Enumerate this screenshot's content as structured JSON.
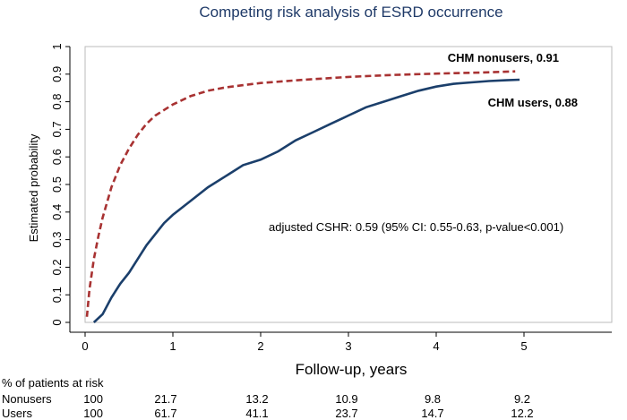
{
  "chart_data": {
    "type": "line",
    "title": "Competing risk analysis of ESRD occurrence",
    "xlabel": "Follow-up, years",
    "ylabel": "Estimated probability",
    "xlim": [
      0,
      6
    ],
    "ylim": [
      0,
      1
    ],
    "xticks": [
      0,
      1,
      2,
      3,
      4,
      5
    ],
    "yticks": [
      0,
      0.1,
      0.2,
      0.3,
      0.4,
      0.5,
      0.6,
      0.7,
      0.8,
      0.9,
      1
    ],
    "series": [
      {
        "name": "CHM nonusers",
        "label": "CHM nonusers, 0.91",
        "color": "#a83232",
        "dash": true,
        "x": [
          0.02,
          0.05,
          0.1,
          0.15,
          0.2,
          0.3,
          0.4,
          0.5,
          0.6,
          0.7,
          0.8,
          0.9,
          1.0,
          1.2,
          1.4,
          1.6,
          1.8,
          2.0,
          2.5,
          3.0,
          3.5,
          4.0,
          4.5,
          4.9
        ],
        "y": [
          0.02,
          0.12,
          0.23,
          0.31,
          0.38,
          0.49,
          0.57,
          0.63,
          0.68,
          0.72,
          0.75,
          0.77,
          0.79,
          0.82,
          0.84,
          0.852,
          0.86,
          0.868,
          0.88,
          0.89,
          0.897,
          0.902,
          0.906,
          0.91
        ]
      },
      {
        "name": "CHM users",
        "label": "CHM users, 0.88",
        "color": "#1b3f6b",
        "dash": false,
        "x": [
          0.1,
          0.2,
          0.3,
          0.4,
          0.5,
          0.6,
          0.7,
          0.8,
          0.9,
          1.0,
          1.2,
          1.4,
          1.6,
          1.8,
          2.0,
          2.2,
          2.4,
          2.6,
          2.8,
          3.0,
          3.2,
          3.4,
          3.6,
          3.8,
          4.0,
          4.2,
          4.4,
          4.6,
          4.8,
          4.95
        ],
        "y": [
          0.0,
          0.03,
          0.09,
          0.14,
          0.18,
          0.23,
          0.28,
          0.32,
          0.36,
          0.39,
          0.44,
          0.49,
          0.53,
          0.57,
          0.59,
          0.62,
          0.66,
          0.69,
          0.72,
          0.75,
          0.78,
          0.8,
          0.82,
          0.84,
          0.855,
          0.865,
          0.87,
          0.875,
          0.878,
          0.88
        ]
      }
    ],
    "annotation": "adjusted CSHR: 0.59 (95% CI: 0.55-0.63, p-value<0.001)",
    "risk_table": {
      "title": "% of patients at risk",
      "rows": [
        {
          "label": "Nonusers",
          "values": [
            "100",
            "21.7",
            "13.2",
            "10.9",
            "9.8",
            "9.2"
          ]
        },
        {
          "label": "Users",
          "values": [
            "100",
            "61.7",
            "41.1",
            "23.7",
            "14.7",
            "12.2"
          ]
        }
      ]
    }
  }
}
